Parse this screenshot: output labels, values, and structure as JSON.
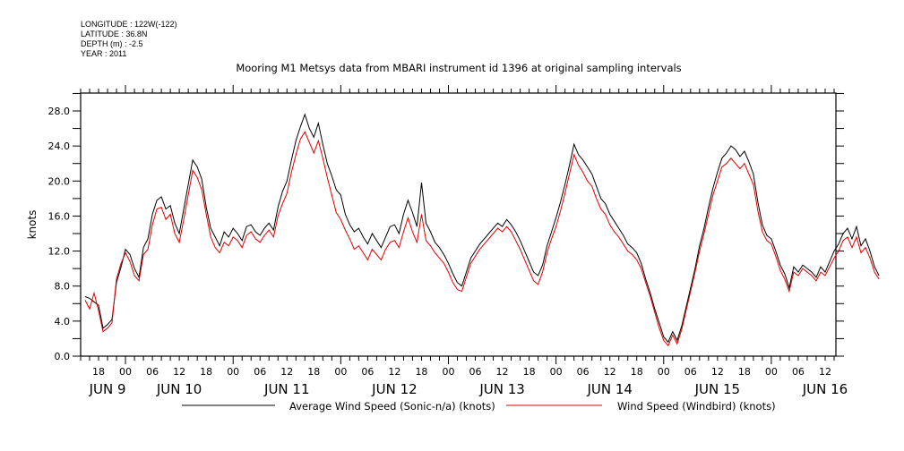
{
  "metadata": {
    "longitude": "LONGITUDE : 122W(-122)",
    "latitude": "LATITUDE : 36.8N",
    "depth": "DEPTH (m) : -2.5",
    "year": "YEAR : 2011"
  },
  "chart_data": {
    "type": "line",
    "title": "Mooring M1 Metsys data from MBARI instrument id 1396 at original sampling intervals",
    "xlabel": "",
    "ylabel": "knots",
    "ylim": [
      0,
      30
    ],
    "y_ticks": [
      0.0,
      4.0,
      8.0,
      12.0,
      16.0,
      20.0,
      24.0,
      28.0
    ],
    "y_tick_labels": [
      "0.0",
      "4.0",
      "8.0",
      "12.0",
      "16.0",
      "20.0",
      "24.0",
      "28.0"
    ],
    "x_unit": "hours since 2011-06-09 00:00",
    "xlim": [
      -10,
      158.4
    ],
    "x_ticks_hours": [
      -6,
      0,
      6,
      12,
      18,
      24,
      30,
      36,
      42,
      48,
      54,
      60,
      66,
      72,
      78,
      84,
      90,
      96,
      102,
      108,
      114,
      120,
      126,
      132,
      138,
      144,
      150,
      156
    ],
    "x_tick_labels": [
      "18",
      "00",
      "06",
      "12",
      "18",
      "00",
      "06",
      "12",
      "18",
      "00",
      "06",
      "12",
      "18",
      "00",
      "06",
      "12",
      "18",
      "00",
      "06",
      "12",
      "18",
      "00",
      "06",
      "12",
      "18",
      "00",
      "06",
      "12"
    ],
    "day_labels": [
      {
        "text": "JUN  9",
        "hour": -4
      },
      {
        "text": "JUN 10",
        "hour": 12
      },
      {
        "text": "JUN 11",
        "hour": 36
      },
      {
        "text": "JUN 12",
        "hour": 60
      },
      {
        "text": "JUN 13",
        "hour": 84
      },
      {
        "text": "JUN 14",
        "hour": 108
      },
      {
        "text": "JUN 15",
        "hour": 132
      },
      {
        "text": "JUN 16",
        "hour": 156
      }
    ],
    "grid": false,
    "legend_position": "bottom",
    "x_start_hour": -9,
    "x_step_hours": 1,
    "series": [
      {
        "name": "Average Wind Speed (Sonic-n/a) (knots)",
        "color": "#000000",
        "values": [
          6.8,
          6.6,
          6.2,
          5.8,
          3.2,
          3.6,
          4.2,
          8.4,
          10.2,
          12.2,
          11.6,
          10.0,
          9.0,
          12.4,
          13.4,
          16.2,
          17.8,
          18.2,
          16.8,
          17.2,
          15.2,
          14.0,
          16.8,
          19.6,
          22.4,
          21.6,
          20.2,
          17.0,
          14.6,
          13.6,
          12.6,
          14.2,
          13.6,
          14.6,
          14.0,
          13.2,
          14.8,
          15.0,
          14.2,
          13.8,
          14.6,
          15.2,
          14.4,
          17.0,
          18.8,
          20.0,
          22.4,
          24.6,
          26.2,
          27.6,
          26.0,
          25.0,
          26.6,
          24.2,
          22.0,
          20.6,
          19.0,
          18.4,
          16.2,
          15.0,
          14.2,
          14.6,
          13.6,
          12.8,
          14.0,
          13.2,
          12.4,
          13.6,
          14.8,
          15.0,
          14.0,
          16.2,
          17.8,
          16.4,
          14.8,
          19.8,
          15.2,
          14.2,
          13.0,
          12.4,
          11.6,
          10.6,
          9.4,
          8.4,
          8.0,
          9.6,
          11.2,
          12.0,
          12.8,
          13.4,
          14.0,
          14.6,
          15.2,
          14.8,
          15.6,
          15.0,
          14.2,
          13.2,
          12.0,
          10.8,
          9.6,
          9.2,
          10.4,
          12.6,
          14.2,
          15.8,
          17.6,
          19.6,
          21.8,
          24.2,
          23.0,
          22.4,
          21.6,
          20.8,
          19.4,
          18.0,
          17.4,
          16.2,
          15.4,
          14.6,
          13.8,
          12.8,
          12.4,
          11.8,
          10.6,
          8.8,
          7.2,
          5.4,
          3.8,
          2.2,
          1.6,
          2.8,
          1.8,
          3.4,
          5.6,
          7.8,
          10.0,
          12.6,
          14.6,
          17.0,
          19.2,
          21.0,
          22.6,
          23.2,
          24.0,
          23.6,
          22.8,
          23.4,
          22.2,
          20.8,
          17.6,
          15.0,
          13.8,
          13.4,
          12.0,
          10.4,
          9.4,
          7.8,
          10.2,
          9.6,
          10.4,
          10.0,
          9.6,
          9.0,
          10.2,
          9.6,
          10.8,
          12.0,
          12.8,
          14.0,
          14.6,
          13.4,
          14.8,
          12.6,
          13.4,
          12.0,
          10.2,
          9.2
        ]
      },
      {
        "name": "Wind Speed (Windbird) (knots)",
        "color": "#e00000",
        "values": [
          6.4,
          5.4,
          7.2,
          5.2,
          2.8,
          3.2,
          3.8,
          8.8,
          10.6,
          11.8,
          10.8,
          9.2,
          8.6,
          11.6,
          12.2,
          15.0,
          16.8,
          17.0,
          15.6,
          16.2,
          14.0,
          13.0,
          15.6,
          18.4,
          21.2,
          20.4,
          19.0,
          16.2,
          13.6,
          12.4,
          11.8,
          13.0,
          12.6,
          13.6,
          13.2,
          12.4,
          13.8,
          14.2,
          13.4,
          13.0,
          13.8,
          14.4,
          13.6,
          16.0,
          17.4,
          18.6,
          21.0,
          23.0,
          24.8,
          25.6,
          24.4,
          23.2,
          24.6,
          22.6,
          20.4,
          18.4,
          16.4,
          15.6,
          14.4,
          13.4,
          12.2,
          12.6,
          11.8,
          11.0,
          12.2,
          11.6,
          11.0,
          12.2,
          13.0,
          13.2,
          12.4,
          14.2,
          15.8,
          14.2,
          13.0,
          16.2,
          13.2,
          12.6,
          11.8,
          11.2,
          10.6,
          9.6,
          8.4,
          7.6,
          7.4,
          9.0,
          10.6,
          11.4,
          12.2,
          12.8,
          13.4,
          14.0,
          14.6,
          14.2,
          14.8,
          14.2,
          13.2,
          12.2,
          11.0,
          9.8,
          8.6,
          8.2,
          9.6,
          11.8,
          13.4,
          14.8,
          16.6,
          18.6,
          20.8,
          23.0,
          21.8,
          21.0,
          20.0,
          19.4,
          18.0,
          16.8,
          16.2,
          15.0,
          14.2,
          13.6,
          12.8,
          12.0,
          11.6,
          11.0,
          10.0,
          8.4,
          6.8,
          5.0,
          3.2,
          1.8,
          1.2,
          2.4,
          1.4,
          3.0,
          5.2,
          7.4,
          9.6,
          12.0,
          14.0,
          16.2,
          18.4,
          20.0,
          21.6,
          22.0,
          22.6,
          22.0,
          21.4,
          22.0,
          20.8,
          19.6,
          16.6,
          14.2,
          13.2,
          12.8,
          11.4,
          9.8,
          8.8,
          7.4,
          9.6,
          9.2,
          10.0,
          9.6,
          9.2,
          8.6,
          9.6,
          9.2,
          10.2,
          11.2,
          12.0,
          13.2,
          13.6,
          12.4,
          13.6,
          11.8,
          12.4,
          11.2,
          9.6,
          8.8
        ]
      }
    ]
  },
  "legend": {
    "items": [
      {
        "label": "Average Wind Speed (Sonic-n/a) (knots)",
        "color": "#000000"
      },
      {
        "label": "Wind Speed (Windbird) (knots)",
        "color": "#e00000"
      }
    ]
  }
}
